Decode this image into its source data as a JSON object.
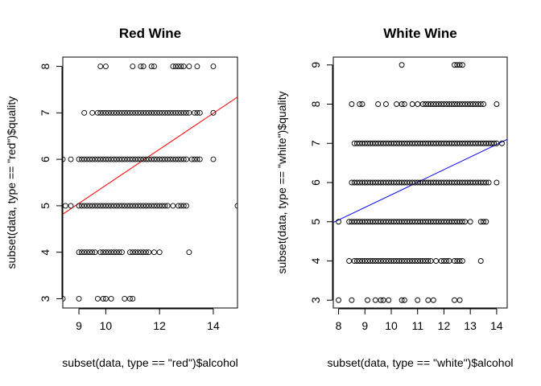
{
  "chart_data": [
    {
      "type": "scatter",
      "title": "Red Wine",
      "xlabel": "subset(data, type == \"red\")$alcohol",
      "ylabel": "subset(data, type == \"red\")$quality",
      "xlim": [
        8.4,
        14.9
      ],
      "ylim": [
        2.8,
        8.2
      ],
      "xticks": [
        9,
        10,
        12,
        14
      ],
      "xtick_labels": [
        "9",
        "10",
        "12",
        "14"
      ],
      "yticks": [
        3,
        4,
        5,
        6,
        7,
        8
      ],
      "ytick_labels": [
        "3",
        "4",
        "5",
        "6",
        "7",
        "8"
      ],
      "fit_line": {
        "color": "#ff0000",
        "x": [
          8.4,
          14.9
        ],
        "y": [
          4.82,
          7.34
        ]
      },
      "series": [
        {
          "quality": 3,
          "alcohol": [
            8.4,
            9.0,
            9.7,
            9.9,
            10.0,
            10.2,
            10.7,
            10.9,
            11.0
          ]
        },
        {
          "quality": 4,
          "alcohol": [
            9.0,
            9.1,
            9.2,
            9.3,
            9.4,
            9.5,
            9.6,
            9.8,
            9.9,
            10.0,
            10.1,
            10.2,
            10.3,
            10.4,
            10.5,
            10.6,
            10.9,
            11.0,
            11.1,
            11.2,
            11.3,
            11.4,
            11.5,
            11.6,
            11.8,
            12.0,
            13.1
          ]
        },
        {
          "quality": 5,
          "alcohol": [
            8.5,
            8.7,
            9.0,
            9.1,
            9.2,
            9.3,
            9.4,
            9.5,
            9.6,
            9.7,
            9.8,
            9.9,
            10.0,
            10.1,
            10.2,
            10.3,
            10.4,
            10.5,
            10.6,
            10.7,
            10.8,
            10.9,
            11.0,
            11.1,
            11.2,
            11.3,
            11.4,
            11.5,
            11.6,
            11.7,
            11.8,
            11.9,
            12.0,
            12.1,
            12.2,
            12.3,
            12.5,
            12.7,
            12.8,
            12.9,
            13.0,
            14.9
          ]
        },
        {
          "quality": 6,
          "alcohol": [
            8.4,
            8.7,
            9.0,
            9.1,
            9.2,
            9.3,
            9.4,
            9.5,
            9.6,
            9.7,
            9.8,
            9.9,
            10.0,
            10.1,
            10.2,
            10.3,
            10.4,
            10.5,
            10.6,
            10.7,
            10.8,
            10.9,
            11.0,
            11.1,
            11.2,
            11.3,
            11.4,
            11.5,
            11.6,
            11.7,
            11.8,
            11.9,
            12.0,
            12.1,
            12.2,
            12.3,
            12.4,
            12.5,
            12.6,
            12.7,
            12.8,
            12.9,
            13.0,
            13.2,
            13.3,
            13.4,
            13.5,
            14.0
          ]
        },
        {
          "quality": 7,
          "alcohol": [
            9.2,
            9.5,
            9.7,
            9.8,
            9.9,
            10.0,
            10.1,
            10.2,
            10.3,
            10.4,
            10.5,
            10.6,
            10.7,
            10.8,
            10.9,
            11.0,
            11.1,
            11.2,
            11.3,
            11.4,
            11.5,
            11.6,
            11.7,
            11.8,
            11.9,
            12.0,
            12.1,
            12.2,
            12.3,
            12.4,
            12.5,
            12.6,
            12.7,
            12.8,
            12.9,
            13.0,
            13.1,
            13.3,
            13.4,
            13.5,
            14.0
          ]
        },
        {
          "quality": 8,
          "alcohol": [
            9.8,
            10.0,
            11.0,
            11.3,
            11.4,
            11.7,
            11.8,
            12.5,
            12.6,
            12.7,
            12.8,
            12.9,
            13.1,
            13.4,
            14.0
          ]
        }
      ]
    },
    {
      "type": "scatter",
      "title": "White Wine",
      "xlabel": "subset(data, type == \"white\")$alcohol",
      "ylabel": "subset(data, type == \"white\")$quality",
      "xlim": [
        7.8,
        14.4
      ],
      "ylim": [
        2.8,
        9.2
      ],
      "xticks": [
        8,
        9,
        10,
        11,
        12,
        13,
        14
      ],
      "xtick_labels": [
        "8",
        "9",
        "10",
        "11",
        "12",
        "13",
        "14"
      ],
      "yticks": [
        3,
        4,
        5,
        6,
        7,
        8,
        9
      ],
      "ytick_labels": [
        "3",
        "4",
        "5",
        "6",
        "7",
        "8",
        "9"
      ],
      "fit_line": {
        "color": "#0000ff",
        "x": [
          7.8,
          14.4
        ],
        "y": [
          4.98,
          7.1
        ]
      },
      "series": [
        {
          "quality": 3,
          "alcohol": [
            8.0,
            8.5,
            9.1,
            9.4,
            9.6,
            9.7,
            9.9,
            10.4,
            10.5,
            11.0,
            11.4,
            11.6,
            12.4,
            12.6
          ]
        },
        {
          "quality": 4,
          "alcohol": [
            8.4,
            8.6,
            8.7,
            8.8,
            8.9,
            9.0,
            9.1,
            9.2,
            9.3,
            9.4,
            9.5,
            9.6,
            9.7,
            9.8,
            9.9,
            10.0,
            10.1,
            10.2,
            10.3,
            10.4,
            10.5,
            10.6,
            10.7,
            10.8,
            10.9,
            11.0,
            11.1,
            11.2,
            11.3,
            11.4,
            11.5,
            11.7,
            11.9,
            12.0,
            12.1,
            12.2,
            12.4,
            12.5,
            12.6,
            12.7,
            13.4
          ]
        },
        {
          "quality": 5,
          "alcohol": [
            8.0,
            8.4,
            8.5,
            8.6,
            8.7,
            8.8,
            8.9,
            9.0,
            9.1,
            9.2,
            9.3,
            9.4,
            9.5,
            9.6,
            9.7,
            9.8,
            9.9,
            10.0,
            10.1,
            10.2,
            10.3,
            10.4,
            10.5,
            10.6,
            10.7,
            10.8,
            10.9,
            11.0,
            11.1,
            11.2,
            11.3,
            11.4,
            11.5,
            11.6,
            11.7,
            11.8,
            11.9,
            12.0,
            12.1,
            12.2,
            12.3,
            12.4,
            12.5,
            12.6,
            12.7,
            12.8,
            13.0,
            13.4,
            13.5,
            13.6
          ]
        },
        {
          "quality": 6,
          "alcohol": [
            8.5,
            8.6,
            8.7,
            8.8,
            8.9,
            9.0,
            9.1,
            9.2,
            9.3,
            9.4,
            9.5,
            9.6,
            9.7,
            9.8,
            9.9,
            10.0,
            10.1,
            10.2,
            10.3,
            10.4,
            10.5,
            10.6,
            10.7,
            10.8,
            10.9,
            11.0,
            11.1,
            11.2,
            11.3,
            11.4,
            11.5,
            11.6,
            11.7,
            11.8,
            11.9,
            12.0,
            12.1,
            12.2,
            12.3,
            12.4,
            12.5,
            12.6,
            12.7,
            12.8,
            12.9,
            13.0,
            13.1,
            13.2,
            13.3,
            13.4,
            13.5,
            13.6,
            13.7,
            14.0
          ]
        },
        {
          "quality": 7,
          "alcohol": [
            8.6,
            8.7,
            8.8,
            8.9,
            9.0,
            9.1,
            9.2,
            9.3,
            9.4,
            9.5,
            9.6,
            9.7,
            9.8,
            9.9,
            10.0,
            10.1,
            10.2,
            10.3,
            10.4,
            10.5,
            10.6,
            10.7,
            10.8,
            10.9,
            11.0,
            11.1,
            11.2,
            11.3,
            11.4,
            11.5,
            11.6,
            11.7,
            11.8,
            11.9,
            12.0,
            12.1,
            12.2,
            12.3,
            12.4,
            12.5,
            12.6,
            12.7,
            12.8,
            12.9,
            13.0,
            13.1,
            13.2,
            13.3,
            13.4,
            13.5,
            13.6,
            13.7,
            13.8,
            13.9,
            14.0,
            14.2
          ]
        },
        {
          "quality": 8,
          "alcohol": [
            8.5,
            8.8,
            8.9,
            9.5,
            9.8,
            10.2,
            10.4,
            10.5,
            10.8,
            11.0,
            11.2,
            11.3,
            11.4,
            11.5,
            11.6,
            11.7,
            11.8,
            11.9,
            12.0,
            12.1,
            12.2,
            12.3,
            12.4,
            12.5,
            12.6,
            12.7,
            12.8,
            12.9,
            13.0,
            13.1,
            13.2,
            13.3,
            13.4,
            13.5,
            14.0
          ]
        },
        {
          "quality": 9,
          "alcohol": [
            10.4,
            12.4,
            12.5,
            12.6,
            12.7
          ]
        }
      ]
    }
  ]
}
